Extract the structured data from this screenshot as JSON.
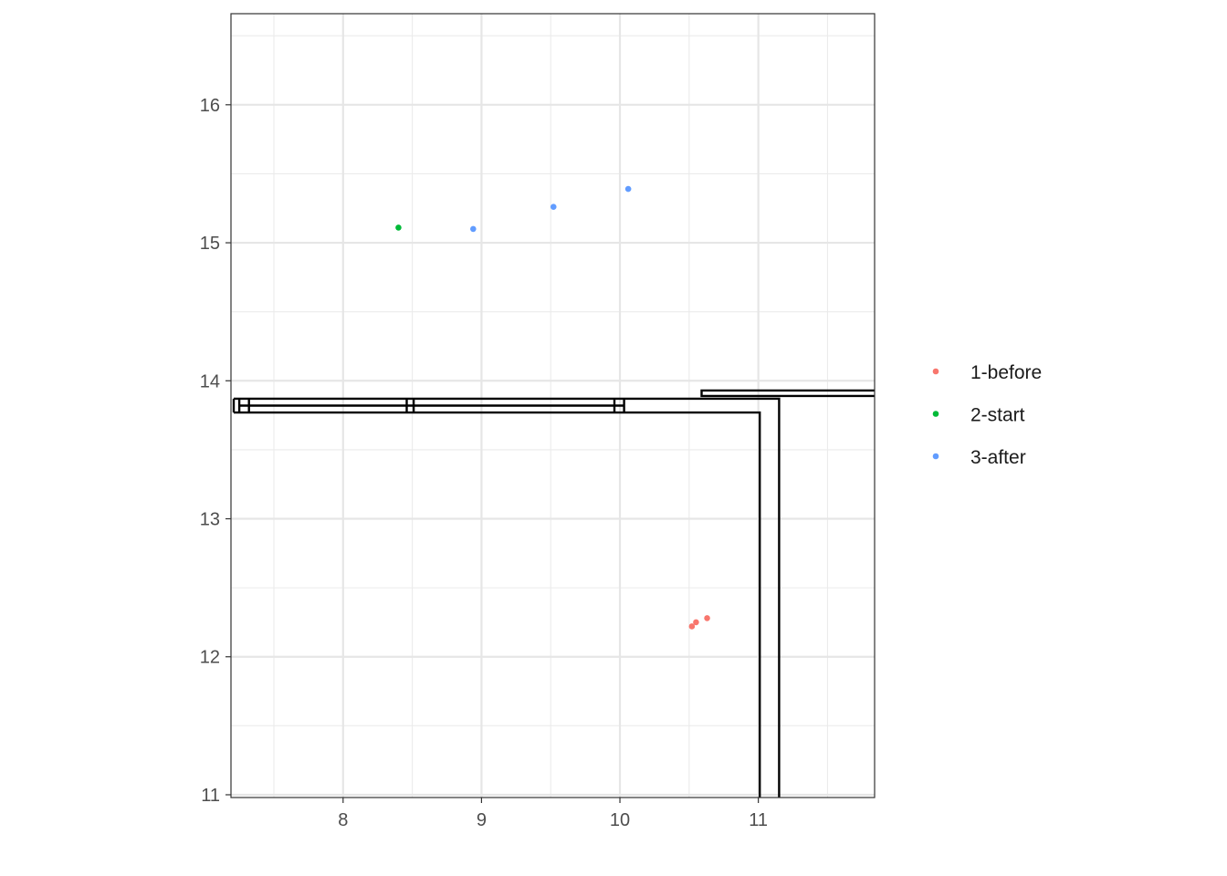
{
  "chart_data": {
    "type": "scatter",
    "title": "",
    "xlabel": "",
    "ylabel": "",
    "xlim": [
      7.19,
      11.84
    ],
    "ylim": [
      10.98,
      16.66
    ],
    "x_ticks": [
      8,
      9,
      10,
      11
    ],
    "y_ticks": [
      11,
      12,
      13,
      14,
      15,
      16
    ],
    "x_tick_labels": [
      "8",
      "9",
      "10",
      "11"
    ],
    "y_tick_labels": [
      "11",
      "12",
      "13",
      "14",
      "15",
      "16"
    ],
    "grid": true,
    "legend_position": "right",
    "series": [
      {
        "name": "1-before",
        "color": "#F8766D",
        "points": [
          [
            10.52,
            12.22
          ],
          [
            10.55,
            12.25
          ],
          [
            10.63,
            12.28
          ]
        ]
      },
      {
        "name": "2-start",
        "color": "#00BA38",
        "points": [
          [
            8.4,
            15.11
          ]
        ]
      },
      {
        "name": "3-after",
        "color": "#619CFF",
        "points": [
          [
            8.94,
            15.1
          ],
          [
            9.52,
            15.26
          ],
          [
            10.06,
            15.39
          ]
        ]
      }
    ],
    "overlay_shapes": [
      [
        [
          7.21,
          13.87
        ],
        [
          11.15,
          13.87
        ],
        [
          11.15,
          10.98
        ]
      ],
      [
        [
          7.21,
          13.77
        ],
        [
          11.01,
          13.77
        ],
        [
          11.01,
          10.98
        ]
      ],
      [
        [
          7.21,
          13.87
        ],
        [
          7.21,
          13.77
        ]
      ],
      [
        [
          7.25,
          13.87
        ],
        [
          7.25,
          13.77
        ]
      ],
      [
        [
          7.32,
          13.87
        ],
        [
          7.32,
          13.77
        ]
      ],
      [
        [
          7.25,
          13.82
        ],
        [
          10.03,
          13.82
        ]
      ],
      [
        [
          8.46,
          13.87
        ],
        [
          8.46,
          13.77
        ]
      ],
      [
        [
          8.51,
          13.87
        ],
        [
          8.51,
          13.77
        ]
      ],
      [
        [
          9.96,
          13.87
        ],
        [
          9.96,
          13.77
        ]
      ],
      [
        [
          10.03,
          13.87
        ],
        [
          10.03,
          13.77
        ]
      ],
      [
        [
          11.84,
          13.93
        ],
        [
          10.59,
          13.93
        ],
        [
          10.59,
          13.89
        ],
        [
          11.84,
          13.89
        ]
      ]
    ]
  }
}
